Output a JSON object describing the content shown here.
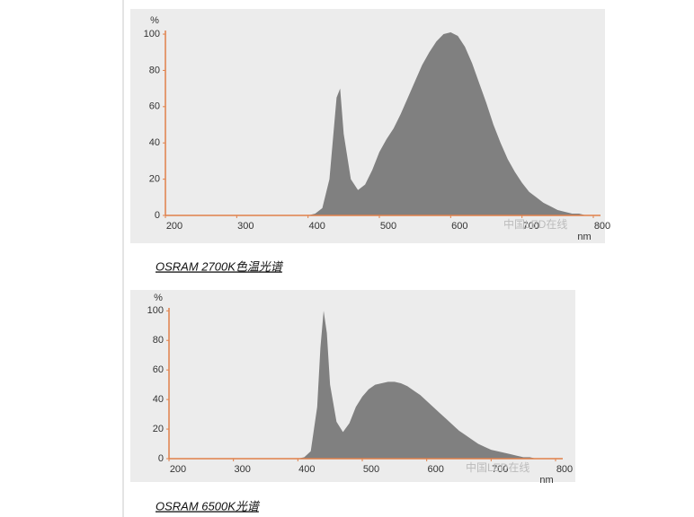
{
  "chart_data": [
    {
      "type": "area",
      "caption": "OSRAM 2700K色温光谱",
      "ylabel": "%",
      "xlabel": "nm",
      "annotation": "中国LED在线",
      "color": "#808080",
      "axis_color": "#e0804a",
      "xlim": [
        200,
        800
      ],
      "ylim": [
        0,
        102
      ],
      "xticks": [
        200,
        300,
        400,
        500,
        600,
        700,
        800
      ],
      "yticks": [
        0,
        20,
        40,
        60,
        80,
        100
      ],
      "x": [
        200,
        390,
        400,
        410,
        420,
        430,
        440,
        445,
        450,
        460,
        470,
        480,
        490,
        500,
        510,
        520,
        530,
        540,
        550,
        560,
        570,
        580,
        590,
        600,
        610,
        620,
        630,
        640,
        650,
        660,
        670,
        680,
        690,
        700,
        710,
        720,
        730,
        740,
        750,
        760,
        770,
        780,
        790,
        800
      ],
      "values": [
        0,
        0,
        0,
        1,
        4,
        20,
        65,
        70,
        45,
        20,
        14,
        17,
        25,
        35,
        42,
        48,
        56,
        65,
        74,
        83,
        90,
        96,
        100,
        101,
        99,
        93,
        84,
        73,
        62,
        50,
        40,
        31,
        24,
        18,
        13,
        10,
        7,
        5,
        3,
        2,
        1,
        1,
        0,
        0
      ]
    },
    {
      "type": "area",
      "caption": "OSRAM 6500K光谱",
      "ylabel": "%",
      "xlabel": "nm",
      "annotation": "中国LED在线",
      "color": "#808080",
      "axis_color": "#e0804a",
      "xlim": [
        200,
        800
      ],
      "ylim": [
        0,
        102
      ],
      "xticks": [
        200,
        300,
        400,
        500,
        600,
        700,
        800
      ],
      "yticks": [
        0,
        20,
        40,
        60,
        80,
        100
      ],
      "x": [
        200,
        390,
        400,
        410,
        420,
        430,
        435,
        440,
        445,
        450,
        460,
        470,
        480,
        490,
        500,
        510,
        520,
        530,
        540,
        550,
        560,
        570,
        580,
        590,
        600,
        610,
        620,
        630,
        640,
        650,
        660,
        670,
        680,
        690,
        700,
        710,
        720,
        730,
        740,
        750,
        760,
        770,
        800
      ],
      "values": [
        0,
        0,
        0,
        1,
        5,
        35,
        75,
        100,
        85,
        50,
        25,
        18,
        24,
        35,
        42,
        47,
        50,
        51,
        52,
        52,
        51,
        49,
        46,
        43,
        39,
        35,
        31,
        27,
        23,
        19,
        16,
        13,
        10,
        8,
        6,
        5,
        4,
        3,
        2,
        1,
        1,
        0,
        0
      ]
    }
  ]
}
